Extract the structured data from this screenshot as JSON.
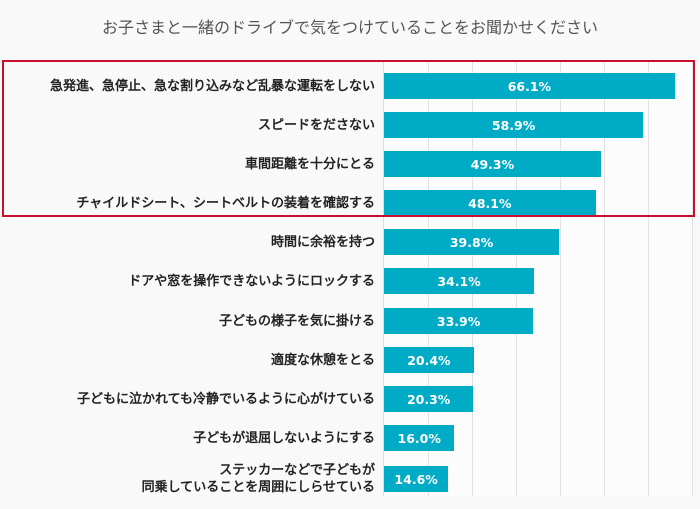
{
  "chart_data": {
    "type": "bar",
    "orientation": "horizontal",
    "title": "お子さまと一緒のドライブで気をつけていることをお聞かせください",
    "categories": [
      "急発進、急停止、急な割り込みなど乱暴な運転をしない",
      "スピードをださない",
      "車間距離を十分にとる",
      "チャイルドシート、シートベルトの装着を確認する",
      "時間に余裕を持つ",
      "ドアや窓を操作できないようにロックする",
      "子どもの様子を気に掛ける",
      "適度な休憩をとる",
      "子どもに泣かれても冷静でいるように心がけている",
      "子どもが退屈しないようにする",
      "ステッカーなどで子どもが\n同乗していることを周囲にしらせている"
    ],
    "values": [
      66.1,
      58.9,
      49.3,
      48.1,
      39.8,
      34.1,
      33.9,
      20.4,
      20.3,
      16.0,
      14.6
    ],
    "data_labels": [
      "66.1%",
      "58.9%",
      "49.3%",
      "48.1%",
      "39.8%",
      "34.1%",
      "33.9%",
      "20.4%",
      "20.3%",
      "16.0%",
      "14.6%"
    ],
    "xlim": [
      0,
      70
    ],
    "grid": true,
    "grid_step": 10,
    "highlighted_categories": [
      0,
      1,
      2,
      3
    ],
    "colors": {
      "bar": "#00abc5",
      "highlight_border": "#c8102e"
    }
  }
}
